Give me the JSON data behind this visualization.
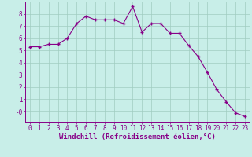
{
  "x": [
    0,
    1,
    2,
    3,
    4,
    5,
    6,
    7,
    8,
    9,
    10,
    11,
    12,
    13,
    14,
    15,
    16,
    17,
    18,
    19,
    20,
    21,
    22,
    23
  ],
  "y": [
    5.3,
    5.3,
    5.5,
    5.5,
    6.0,
    7.2,
    7.8,
    7.5,
    7.5,
    7.5,
    7.2,
    8.6,
    6.5,
    7.2,
    7.2,
    6.4,
    6.4,
    5.4,
    4.5,
    3.2,
    1.8,
    0.8,
    -0.1,
    -0.4
  ],
  "line_color": "#880088",
  "marker": "+",
  "marker_size": 3.5,
  "marker_linewidth": 1.0,
  "xlabel": "Windchill (Refroidissement éolien,°C)",
  "xlabel_fontsize": 6.5,
  "ylim": [
    -0.9,
    9.0
  ],
  "xlim": [
    -0.5,
    23.5
  ],
  "yticks": [
    0,
    1,
    2,
    3,
    4,
    5,
    6,
    7,
    8
  ],
  "ytick_labels": [
    "-0",
    "1",
    "2",
    "3",
    "4",
    "5",
    "6",
    "7",
    "8"
  ],
  "xticks": [
    0,
    1,
    2,
    3,
    4,
    5,
    6,
    7,
    8,
    9,
    10,
    11,
    12,
    13,
    14,
    15,
    16,
    17,
    18,
    19,
    20,
    21,
    22,
    23
  ],
  "background_color": "#c8eee8",
  "grid_color": "#a0ccc0",
  "tick_fontsize": 5.5,
  "linewidth": 0.8
}
